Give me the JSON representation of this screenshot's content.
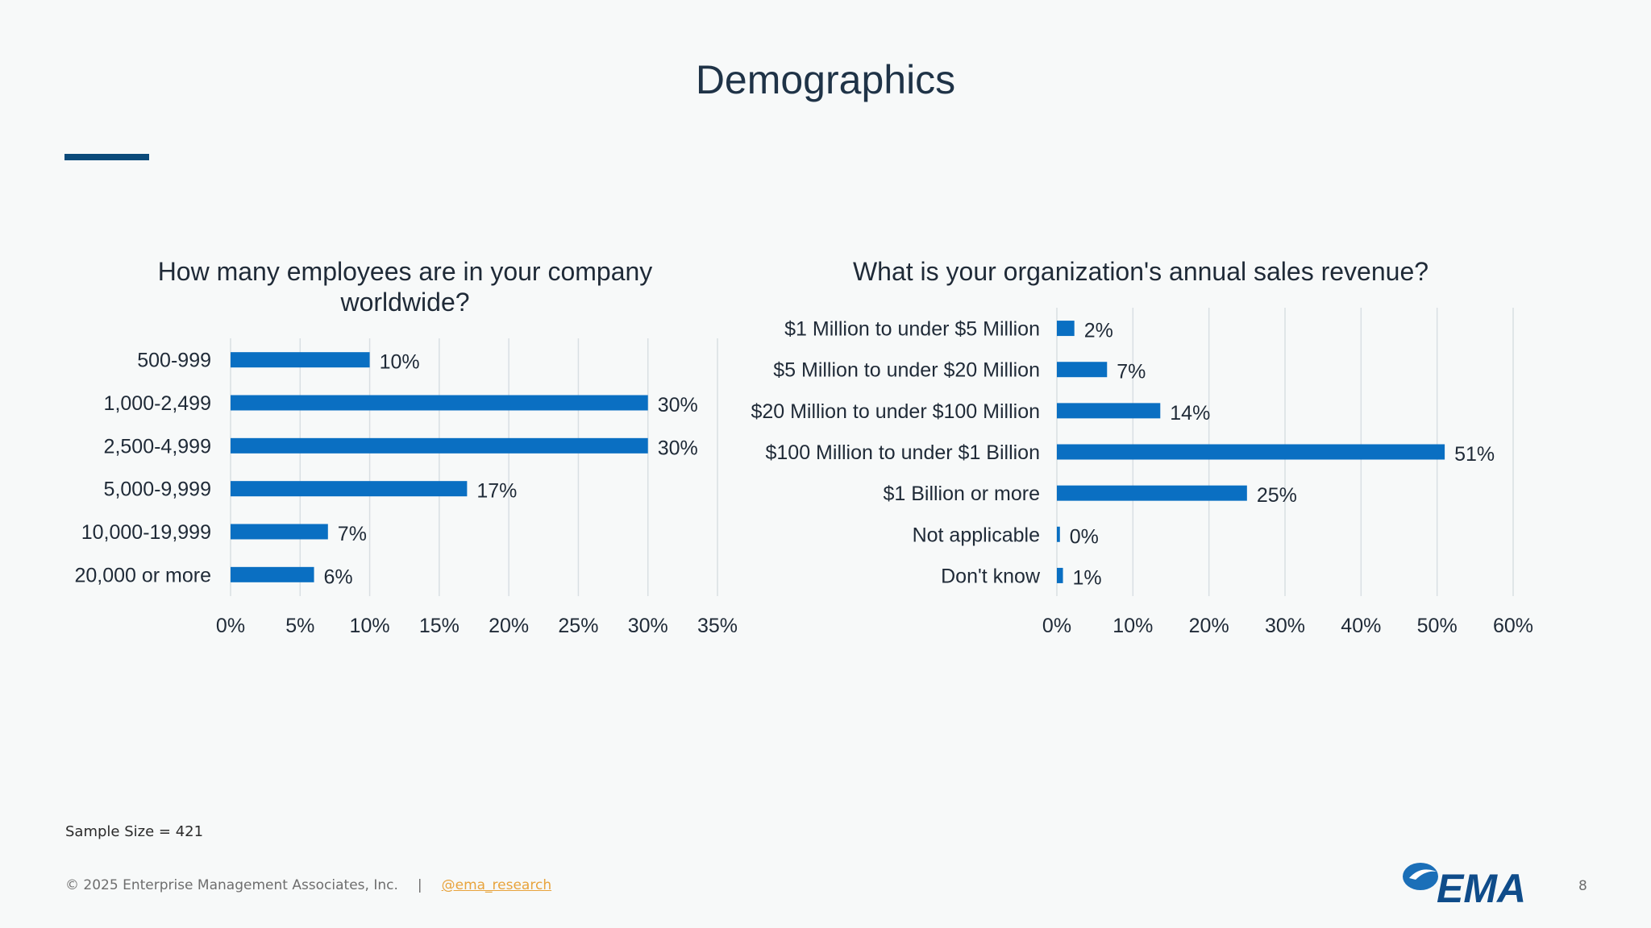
{
  "slide": {
    "title": "Demographics"
  },
  "chart_data": [
    {
      "type": "bar",
      "orientation": "horizontal",
      "title": "How many employees are in your company worldwide?",
      "categories": [
        "500-999",
        "1,000-2,499",
        "2,500-4,999",
        "5,000-9,999",
        "10,000-19,999",
        "20,000 or more"
      ],
      "values": [
        10,
        30,
        30,
        17,
        7,
        6
      ],
      "data_labels": [
        "10%",
        "30%",
        "30%",
        "17%",
        "7%",
        "6%"
      ],
      "xlim": [
        0,
        35
      ],
      "xticks": [
        0,
        5,
        10,
        15,
        20,
        25,
        30,
        35
      ],
      "xtick_labels": [
        "0%",
        "5%",
        "10%",
        "15%",
        "20%",
        "25%",
        "30%",
        "35%"
      ],
      "grid": "vertical",
      "legend": "none",
      "bar_color": "#0a6fc2"
    },
    {
      "type": "bar",
      "orientation": "horizontal",
      "title": "What is your organization's annual sales revenue?",
      "categories": [
        "$1 Million to under $5 Million",
        "$5 Million to under $20 Million",
        "$20 Million to under $100 Million",
        "$100 Million to under $1 Billion",
        "$1 Billion or more",
        "Not applicable",
        "Don't know"
      ],
      "values": [
        2.3,
        6.6,
        13.6,
        51,
        25,
        0.4,
        0.8
      ],
      "data_labels": [
        "2%",
        "7%",
        "14%",
        "51%",
        "25%",
        "0%",
        "1%"
      ],
      "xlim": [
        0,
        60
      ],
      "xticks": [
        0,
        10,
        20,
        30,
        40,
        50,
        60
      ],
      "xtick_labels": [
        "0%",
        "10%",
        "20%",
        "30%",
        "40%",
        "50%",
        "60%"
      ],
      "grid": "vertical",
      "legend": "none",
      "bar_color": "#0a6fc2"
    }
  ],
  "footer": {
    "sample_size": "Sample Size = 421",
    "copyright": "© 2025 Enterprise Management Associates, Inc.",
    "separator": "|",
    "handle": "@ema_research",
    "logo_text": "EMA",
    "page_number": "8"
  }
}
